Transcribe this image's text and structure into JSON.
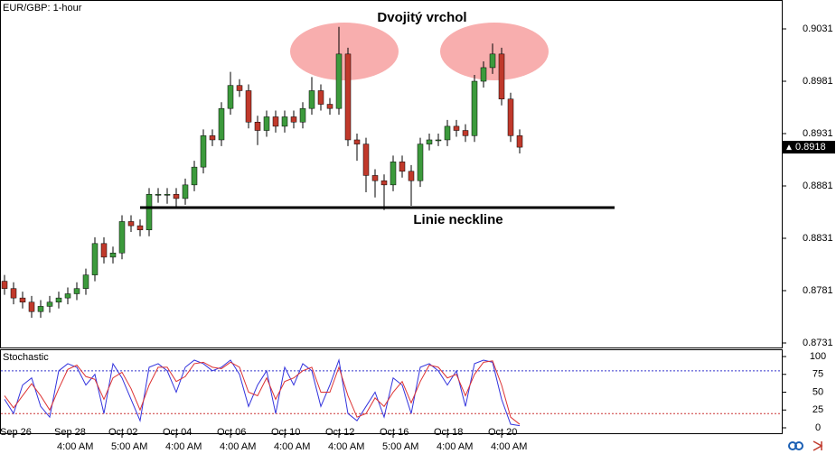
{
  "chart_data": {
    "type": "candlestick",
    "title": "EUR/GBP: 1-hour",
    "annotations": [
      "Dvojitý vrchol",
      "Linie neckline"
    ],
    "ylim": [
      0.87267,
      0.90586
    ],
    "yticks": [
      0.9031,
      0.8981,
      0.8931,
      0.8881,
      0.8831,
      0.8781,
      0.8731
    ],
    "up_color": "#3c9a3c",
    "down_color": "#c0392b",
    "dates": [
      null,
      "Sep 26",
      null,
      null,
      null,
      null,
      null,
      "Sep 28",
      null,
      null,
      null,
      null,
      null,
      "Oct 02",
      null,
      null,
      null,
      null,
      null,
      "Oct 04",
      null,
      null,
      null,
      null,
      null,
      "Oct 06",
      null,
      null,
      null,
      null,
      null,
      "Oct 10",
      null,
      null,
      null,
      null,
      null,
      "Oct 12",
      null,
      null,
      null,
      null,
      null,
      "Oct 16",
      null,
      null,
      null,
      null,
      null,
      "Oct 18",
      null,
      null,
      null,
      null,
      null,
      "Oct 20",
      null,
      null
    ],
    "times": [
      null,
      null,
      null,
      null,
      null,
      null,
      null,
      "4:00 AM",
      null,
      null,
      null,
      null,
      null,
      "5:00 AM",
      null,
      null,
      null,
      null,
      null,
      "4:00 AM",
      null,
      null,
      null,
      null,
      null,
      "4:00 AM",
      null,
      null,
      null,
      null,
      null,
      "4:00 AM",
      null,
      null,
      null,
      null,
      null,
      "4:00 AM",
      null,
      null,
      null,
      null,
      null,
      "5:00 AM",
      null,
      null,
      null,
      null,
      null,
      "4:00 AM",
      null,
      null,
      null,
      null,
      null,
      "4:00 AM",
      null,
      null
    ],
    "ohlc": [
      [
        0.879,
        0.8796,
        0.8777,
        0.8783
      ],
      [
        0.8783,
        0.8789,
        0.8768,
        0.8774
      ],
      [
        0.8774,
        0.878,
        0.8764,
        0.877
      ],
      [
        0.877,
        0.8776,
        0.8755,
        0.8761
      ],
      [
        0.8761,
        0.8772,
        0.8755,
        0.8766
      ],
      [
        0.8766,
        0.8776,
        0.876,
        0.877
      ],
      [
        0.877,
        0.878,
        0.8764,
        0.8774
      ],
      [
        0.8774,
        0.8784,
        0.8768,
        0.8778
      ],
      [
        0.8778,
        0.8789,
        0.8772,
        0.8783
      ],
      [
        0.8783,
        0.8802,
        0.8777,
        0.8796
      ],
      [
        0.8796,
        0.8832,
        0.879,
        0.8826
      ],
      [
        0.8826,
        0.8832,
        0.8807,
        0.8813
      ],
      [
        0.8813,
        0.8823,
        0.8807,
        0.8817
      ],
      [
        0.8817,
        0.8853,
        0.8811,
        0.8847
      ],
      [
        0.8847,
        0.8853,
        0.8837,
        0.8843
      ],
      [
        0.8843,
        0.8849,
        0.8833,
        0.8839
      ],
      [
        0.8839,
        0.8879,
        0.8833,
        0.8873
      ],
      [
        0.8873,
        0.8879,
        0.8865,
        0.8873
      ],
      [
        0.8873,
        0.8879,
        0.8864,
        0.8873
      ],
      [
        0.8873,
        0.8879,
        0.886,
        0.8869
      ],
      [
        0.8869,
        0.8888,
        0.8863,
        0.8882
      ],
      [
        0.8882,
        0.8905,
        0.8876,
        0.8899
      ],
      [
        0.8899,
        0.8935,
        0.8893,
        0.8929
      ],
      [
        0.8929,
        0.8935,
        0.8919,
        0.8925
      ],
      [
        0.8925,
        0.8961,
        0.8919,
        0.8955
      ],
      [
        0.8955,
        0.899,
        0.8949,
        0.8977
      ],
      [
        0.8977,
        0.8983,
        0.8966,
        0.8972
      ],
      [
        0.8972,
        0.8978,
        0.8936,
        0.8942
      ],
      [
        0.8942,
        0.8948,
        0.892,
        0.8934
      ],
      [
        0.8934,
        0.8953,
        0.8928,
        0.8947
      ],
      [
        0.8947,
        0.8953,
        0.8932,
        0.8938
      ],
      [
        0.8938,
        0.8953,
        0.8932,
        0.8947
      ],
      [
        0.8947,
        0.8953,
        0.8936,
        0.8942
      ],
      [
        0.8942,
        0.8961,
        0.8936,
        0.8955
      ],
      [
        0.8955,
        0.8985,
        0.8949,
        0.8972
      ],
      [
        0.8972,
        0.8978,
        0.8953,
        0.8959
      ],
      [
        0.8959,
        0.8965,
        0.8949,
        0.8955
      ],
      [
        0.8955,
        0.9033,
        0.8949,
        0.9007
      ],
      [
        0.9007,
        0.9013,
        0.8919,
        0.8925
      ],
      [
        0.8925,
        0.8931,
        0.8905,
        0.8921
      ],
      [
        0.8921,
        0.8927,
        0.8875,
        0.8891
      ],
      [
        0.8891,
        0.8897,
        0.887,
        0.8886
      ],
      [
        0.8886,
        0.8892,
        0.8858,
        0.8882
      ],
      [
        0.8882,
        0.891,
        0.8876,
        0.8904
      ],
      [
        0.8904,
        0.891,
        0.8889,
        0.8895
      ],
      [
        0.8895,
        0.8901,
        0.8862,
        0.8886
      ],
      [
        0.8886,
        0.8927,
        0.888,
        0.8921
      ],
      [
        0.8921,
        0.8931,
        0.8915,
        0.8925
      ],
      [
        0.8925,
        0.8931,
        0.8919,
        0.8925
      ],
      [
        0.8925,
        0.8944,
        0.8919,
        0.8938
      ],
      [
        0.8938,
        0.8944,
        0.8928,
        0.8934
      ],
      [
        0.8934,
        0.894,
        0.8923,
        0.8929
      ],
      [
        0.8929,
        0.8987,
        0.8923,
        0.8981
      ],
      [
        0.8981,
        0.9,
        0.8975,
        0.8994
      ],
      [
        0.8994,
        0.9017,
        0.8988,
        0.9007
      ],
      [
        0.9007,
        0.9013,
        0.8958,
        0.8964
      ],
      [
        0.8964,
        0.897,
        0.8923,
        0.8929
      ],
      [
        0.8929,
        0.8935,
        0.8912,
        0.8918
      ]
    ],
    "stochastic": {
      "title": "Stochastic",
      "ylim": [
        -7.6,
        108.9
      ],
      "yticks": [
        100,
        75,
        50,
        25,
        0
      ],
      "levels": [
        80,
        20
      ],
      "level_colors": [
        "#3333cc",
        "#cc3333"
      ],
      "series": [
        {
          "color": "#3333dd",
          "values": [
            40,
            20,
            60,
            70,
            30,
            15,
            80,
            90,
            85,
            60,
            75,
            20,
            90,
            70,
            40,
            10,
            85,
            90,
            80,
            50,
            85,
            95,
            90,
            80,
            85,
            95,
            75,
            30,
            60,
            80,
            20,
            85,
            60,
            90,
            80,
            30,
            60,
            95,
            20,
            10,
            30,
            50,
            15,
            70,
            60,
            20,
            85,
            90,
            80,
            60,
            80,
            30,
            90,
            95,
            92,
            40,
            5,
            3
          ]
        },
        {
          "color": "#dd3333",
          "values": [
            45,
            28,
            45,
            62,
            45,
            25,
            55,
            82,
            88,
            72,
            68,
            40,
            70,
            78,
            55,
            25,
            60,
            85,
            85,
            65,
            72,
            90,
            92,
            85,
            83,
            92,
            85,
            50,
            45,
            70,
            40,
            65,
            70,
            80,
            85,
            50,
            50,
            85,
            45,
            15,
            20,
            42,
            30,
            50,
            65,
            35,
            65,
            88,
            85,
            70,
            75,
            45,
            75,
            92,
            94,
            60,
            15,
            5
          ]
        }
      ]
    }
  }
}
